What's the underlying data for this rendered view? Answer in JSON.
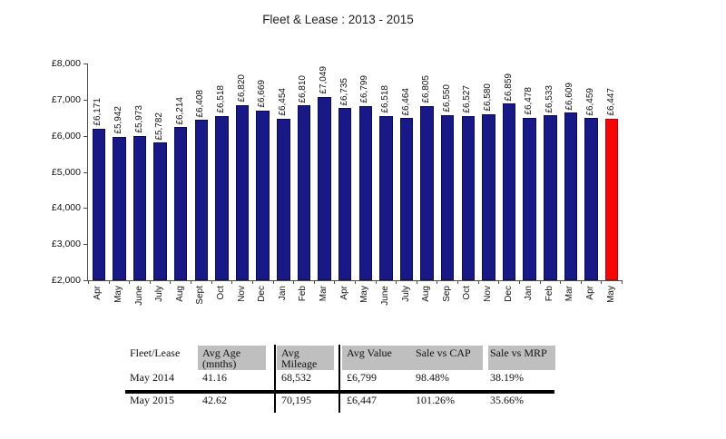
{
  "title": "Fleet & Lease : 2013 - 2015",
  "chart_data": {
    "type": "bar",
    "title": "Fleet & Lease : 2013 - 2015",
    "categories": [
      "Apr",
      "May",
      "June",
      "July",
      "Aug",
      "Sept",
      "Oct",
      "Nov",
      "Dec",
      "Jan",
      "Feb",
      "Mar",
      "Apr",
      "May",
      "June",
      "July",
      "Aug",
      "Sep",
      "Oct",
      "Nov",
      "Dec",
      "Jan",
      "Feb",
      "Mar",
      "Apr",
      "May"
    ],
    "values": [
      6171,
      5942,
      5973,
      5782,
      6214,
      6408,
      6518,
      6820,
      6669,
      6454,
      6810,
      7049,
      6735,
      6799,
      6518,
      6464,
      6805,
      6550,
      6527,
      6580,
      6859,
      6478,
      6533,
      6609,
      6459,
      6447
    ],
    "value_labels": [
      "£6,171",
      "£5,942",
      "£5,973",
      "£5,782",
      "£6,214",
      "£6,408",
      "£6,518",
      "£6,820",
      "£6,669",
      "£6,454",
      "£6,810",
      "£7,049",
      "£6,735",
      "£6,799",
      "£6,518",
      "£6,464",
      "£6,805",
      "£6,550",
      "£6,527",
      "£6,580",
      "£6,859",
      "£6,478",
      "£6,533",
      "£6,609",
      "£6,459",
      "£6,447"
    ],
    "highlight_index": 25,
    "ylim": [
      2000,
      8000
    ],
    "y_ticks": [
      {
        "label": "£8,000",
        "value": 8000
      },
      {
        "label": "£7,000",
        "value": 7000
      },
      {
        "label": "£6,000",
        "value": 6000
      },
      {
        "label": "£5,000",
        "value": 5000
      },
      {
        "label": "£4,000",
        "value": 4000
      },
      {
        "label": "£3,000",
        "value": 3000
      },
      {
        "label": "£2,000",
        "value": 2000
      }
    ],
    "grid": false,
    "legend": null,
    "colors": {
      "bar": "#181887",
      "bar_edge": "#0c0c52",
      "highlight": "#f50707",
      "highlight_edge": "#b50404"
    }
  },
  "table": {
    "row_header_title": "Fleet/Lease",
    "columns": [
      "Avg Age\n(mnths)",
      "Avg Mileage",
      "Avg Value",
      "Sale vs CAP",
      "Sale vs MRP"
    ],
    "rows": [
      {
        "label": "May 2014",
        "cells": [
          "41.16",
          "68,532",
          "£6,799",
          "98.48%",
          "38.19%"
        ]
      },
      {
        "label": "May 2015",
        "cells": [
          "42.62",
          "70,195",
          "£6,447",
          "101.26%",
          "35.66%"
        ]
      }
    ]
  }
}
